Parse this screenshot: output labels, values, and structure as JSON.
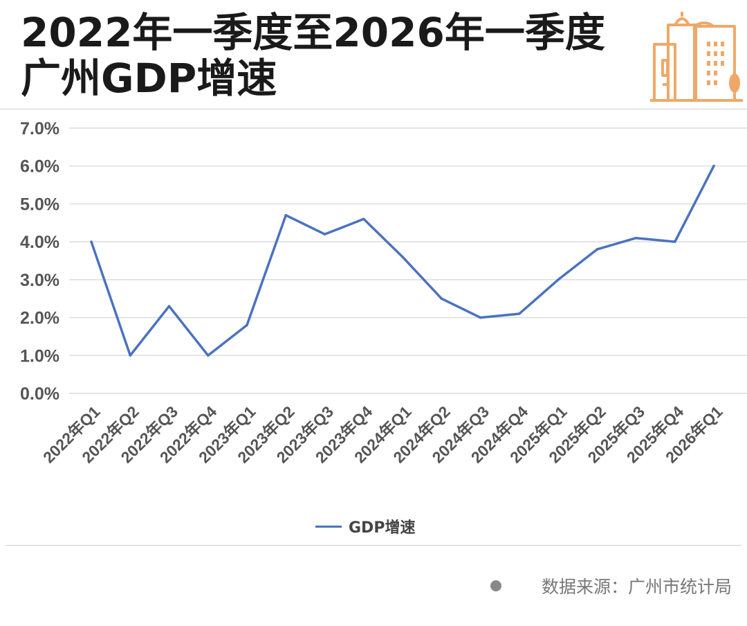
{
  "header": {
    "title": "2022年一季度至2026年一季度广州GDP增速",
    "logo_icon": "city-buildings-icon"
  },
  "colors": {
    "line": "#4a72c0",
    "logo": "#f0a868",
    "grid": "#dcdcdc",
    "tick_text": "#555555"
  },
  "chart_data": {
    "type": "line",
    "categories": [
      "2022年Q1",
      "2022年Q2",
      "2022年Q3",
      "2022年Q4",
      "2023年Q1",
      "2023年Q2",
      "2023年Q3",
      "2023年Q4",
      "2024年Q1",
      "2024年Q2",
      "2024年Q3",
      "2024年Q4",
      "2025年Q1",
      "2025年Q2",
      "2025年Q3",
      "2025年Q4",
      "2026年Q1"
    ],
    "series": [
      {
        "name": "GDP增速",
        "values": [
          4.0,
          1.0,
          2.3,
          1.0,
          1.8,
          4.7,
          4.2,
          4.6,
          3.6,
          2.5,
          2.0,
          2.1,
          3.0,
          3.8,
          4.1,
          4.0,
          6.0
        ]
      }
    ],
    "ylim": [
      0,
      7
    ],
    "yticks": [
      "0.0%",
      "1.0%",
      "2.0%",
      "3.0%",
      "4.0%",
      "5.0%",
      "6.0%",
      "7.0%"
    ],
    "grid": true,
    "legend_position": "bottom"
  },
  "legend": {
    "label": "GDP增速"
  },
  "footer": {
    "source": "数据来源：广州市统计局"
  }
}
